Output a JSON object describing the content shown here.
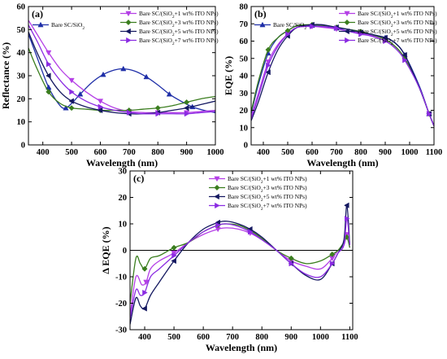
{
  "chart_data": [
    {
      "panel": "(a)",
      "type": "line",
      "xlabel": "Wavelength (nm)",
      "ylabel": "Reflectance (%)",
      "xlim": [
        350,
        1000
      ],
      "ylim": [
        0,
        60
      ],
      "xticks": [
        400,
        500,
        600,
        700,
        800,
        900,
        1000
      ],
      "yticks": [
        0,
        10,
        20,
        30,
        40,
        50,
        60
      ],
      "legend": "top-right and upper-left",
      "series": [
        {
          "name": "Bare SC/SiO2",
          "color": "#1f2fa8",
          "marker": "triangle",
          "x": [
            350,
            380,
            420,
            460,
            480,
            500,
            530,
            570,
            610,
            650,
            680,
            720,
            760,
            800,
            840,
            880,
            920,
            960,
            1000
          ],
          "y": [
            48,
            38,
            25,
            17,
            16,
            18,
            22,
            27,
            30.5,
            32.5,
            33,
            32,
            29.5,
            26,
            22,
            19,
            16.5,
            15,
            14
          ]
        },
        {
          "name": "Bare SC/(SiO2+1 wt% ITO NPs)",
          "color": "#b43fe6",
          "marker": "triangle-down",
          "x": [
            350,
            380,
            420,
            460,
            500,
            550,
            600,
            650,
            700,
            750,
            800,
            850,
            900,
            950,
            1000
          ],
          "y": [
            54,
            48,
            40,
            33,
            28,
            23,
            19,
            16,
            14.5,
            14,
            14,
            14,
            14,
            14.5,
            15
          ]
        },
        {
          "name": "Bare SC/(SiO2+3 wt% ITO NPs)",
          "color": "#3a7d1e",
          "marker": "diamond",
          "x": [
            350,
            380,
            420,
            460,
            500,
            550,
            600,
            650,
            700,
            750,
            800,
            850,
            900,
            950,
            1000
          ],
          "y": [
            42,
            33,
            23,
            18,
            16,
            15.5,
            15,
            15,
            15,
            15.5,
            16,
            17,
            18.5,
            20,
            21
          ]
        },
        {
          "name": "Bare SC/(SiO2+5 wt% ITO NPs)",
          "color": "#141860",
          "marker": "triangle-left",
          "x": [
            350,
            380,
            420,
            460,
            500,
            550,
            600,
            650,
            700,
            750,
            800,
            850,
            900,
            950,
            1000
          ],
          "y": [
            49,
            40,
            30,
            23,
            19,
            16.5,
            15,
            14,
            13.5,
            13.5,
            14,
            15,
            16,
            17.5,
            19
          ]
        },
        {
          "name": "Bare SC/(SiO2+7 wt% ITO NPs)",
          "color": "#8a2be2",
          "marker": "triangle-right",
          "x": [
            350,
            380,
            420,
            460,
            500,
            550,
            600,
            650,
            700,
            750,
            800,
            850,
            900,
            950,
            1000
          ],
          "y": [
            52,
            45,
            35,
            28,
            23,
            19,
            16.5,
            15,
            14,
            13.5,
            13.5,
            13.5,
            13.5,
            14,
            14.5
          ]
        }
      ]
    },
    {
      "panel": "(b)",
      "type": "line",
      "xlabel": "Wavelength (nm)",
      "ylabel": "EQE (%)",
      "xlim": [
        350,
        1100
      ],
      "ylim": [
        0,
        80
      ],
      "xticks": [
        400,
        500,
        600,
        700,
        800,
        900,
        1000,
        1100
      ],
      "yticks": [
        0,
        10,
        20,
        30,
        40,
        50,
        60,
        70,
        80
      ],
      "legend": "top-right and upper-left",
      "series": [
        {
          "name": "Bare SC/SiO2",
          "color": "#1f2fa8",
          "marker": "triangle",
          "x": [
            350,
            380,
            420,
            460,
            500,
            540,
            600,
            640,
            700,
            740,
            800,
            840,
            900,
            940,
            980,
            1040,
            1080,
            1100
          ],
          "y": [
            18,
            35,
            53,
            62,
            66,
            69,
            69,
            68.5,
            67.5,
            67,
            65.5,
            64,
            62,
            59,
            52,
            34,
            18,
            11
          ]
        },
        {
          "name": "Bare SC/(SiO2+1 wt% ITO NPs)",
          "color": "#b43fe6",
          "marker": "triangle-down",
          "x": [
            350,
            380,
            420,
            460,
            500,
            540,
            600,
            640,
            700,
            740,
            800,
            840,
            900,
            940,
            980,
            1040,
            1080,
            1100
          ],
          "y": [
            16,
            30,
            48,
            58,
            64,
            68,
            68.5,
            68,
            67,
            66,
            64.5,
            63.5,
            61,
            57,
            50,
            33,
            18,
            11
          ]
        },
        {
          "name": "Bare SC/(SiO2+3 wt% ITO NPs)",
          "color": "#3a7d1e",
          "marker": "diamond",
          "x": [
            350,
            380,
            420,
            460,
            500,
            540,
            600,
            640,
            700,
            740,
            800,
            840,
            900,
            940,
            980,
            1040,
            1080,
            1100
          ],
          "y": [
            19,
            37,
            55,
            62,
            66,
            69,
            69.5,
            69,
            68,
            67,
            65.5,
            64,
            61,
            57,
            50,
            33,
            18,
            11
          ]
        },
        {
          "name": "Bare SC/(SiO2+5 wt% ITO NPs)",
          "color": "#141860",
          "marker": "triangle-left",
          "x": [
            350,
            380,
            420,
            460,
            500,
            540,
            600,
            640,
            700,
            740,
            800,
            840,
            900,
            940,
            980,
            1040,
            1080,
            1100
          ],
          "y": [
            14,
            25,
            42,
            55,
            63,
            68,
            69.5,
            69.5,
            68,
            67,
            65,
            64,
            62,
            59,
            52,
            33,
            18,
            11
          ]
        },
        {
          "name": "Bare SC/(SiO2+7 wt% ITO NPs)",
          "color": "#8a2be2",
          "marker": "triangle-right",
          "x": [
            350,
            380,
            420,
            460,
            500,
            540,
            600,
            640,
            700,
            740,
            800,
            840,
            900,
            940,
            980,
            1040,
            1080,
            1100
          ],
          "y": [
            15,
            28,
            46,
            57,
            64,
            68,
            68.5,
            68.5,
            67.5,
            66,
            64,
            63,
            60,
            56,
            49,
            33,
            18,
            11
          ]
        }
      ]
    },
    {
      "panel": "(c)",
      "type": "line",
      "xlabel": "Wavelength (nm)",
      "ylabel": "Δ EQE (%)",
      "xlim": [
        350,
        1110
      ],
      "ylim": [
        -30,
        30
      ],
      "xticks": [
        400,
        500,
        600,
        700,
        800,
        900,
        1000,
        1100
      ],
      "yticks": [
        -30,
        -20,
        -10,
        0,
        10,
        20,
        30
      ],
      "legend": "top-right",
      "series": [
        {
          "name": "Bare SC/(SiO2+1 wt% ITO NPs)",
          "color": "#b43fe6",
          "marker": "triangle-down",
          "x": [
            350,
            370,
            390,
            405,
            420,
            450,
            500,
            550,
            600,
            650,
            680,
            720,
            760,
            800,
            850,
            900,
            950,
            1000,
            1040,
            1060,
            1080,
            1090,
            1100
          ],
          "y": [
            -25,
            -10,
            -13,
            -12,
            -7,
            -4,
            -1,
            3,
            6,
            8,
            8.5,
            8,
            6.5,
            4,
            0,
            -4,
            -6,
            -7,
            -3,
            0,
            2,
            6,
            1
          ]
        },
        {
          "name": "Bare SC/(SiO2+3 wt% ITO NPs)",
          "color": "#3a7d1e",
          "marker": "diamond",
          "x": [
            350,
            370,
            385,
            400,
            420,
            450,
            500,
            550,
            600,
            650,
            680,
            720,
            760,
            800,
            850,
            900,
            950,
            1000,
            1040,
            1060,
            1080,
            1090,
            1100
          ],
          "y": [
            -20,
            -3,
            -5,
            -7,
            -3,
            -2,
            1,
            3,
            7,
            9.5,
            10,
            9.5,
            7.5,
            4.5,
            0,
            -3,
            -5,
            -4,
            -1.5,
            0,
            3,
            5,
            1
          ]
        },
        {
          "name": "Bare SC/(SiO2+5 wt% ITO NPs)",
          "color": "#141860",
          "marker": "triangle-left",
          "x": [
            350,
            370,
            385,
            400,
            420,
            450,
            500,
            550,
            600,
            650,
            680,
            720,
            760,
            800,
            850,
            900,
            950,
            1000,
            1040,
            1060,
            1080,
            1090,
            1100
          ],
          "y": [
            -28,
            -18,
            -21,
            -22,
            -17,
            -12,
            -4,
            3,
            8,
            10.5,
            11,
            10,
            8,
            5,
            0,
            -5,
            -9.5,
            -11,
            -5,
            -1,
            4,
            17,
            2
          ]
        },
        {
          "name": "Bare SC/(SiO2+7 wt% ITO NPs)",
          "color": "#8a2be2",
          "marker": "triangle-right",
          "x": [
            350,
            370,
            385,
            400,
            420,
            450,
            500,
            550,
            600,
            650,
            680,
            720,
            760,
            800,
            850,
            900,
            950,
            1000,
            1040,
            1060,
            1080,
            1090,
            1100
          ],
          "y": [
            -26,
            -15,
            -17,
            -16,
            -10,
            -7,
            -2,
            3,
            7,
            9.5,
            10,
            9,
            7,
            4,
            0,
            -5,
            -9,
            -10,
            -5,
            -1,
            2,
            12,
            2
          ]
        }
      ]
    }
  ],
  "legend_labels": {
    "bare": [
      "Bare SC/SiO",
      "2"
    ],
    "p1": [
      "Bare SC/(SiO",
      "2",
      "+1 wt% ITO NPs)"
    ],
    "p3": [
      "Bare SC/(SiO",
      "2",
      "+3 wt% ITO NPs)"
    ],
    "p5": [
      "Bare SC/(SiO",
      "2",
      "+5 wt% ITO NPs)"
    ],
    "p7": [
      "Bare SC/(SiO",
      "2",
      "+7 wt% ITO NPs)"
    ]
  }
}
